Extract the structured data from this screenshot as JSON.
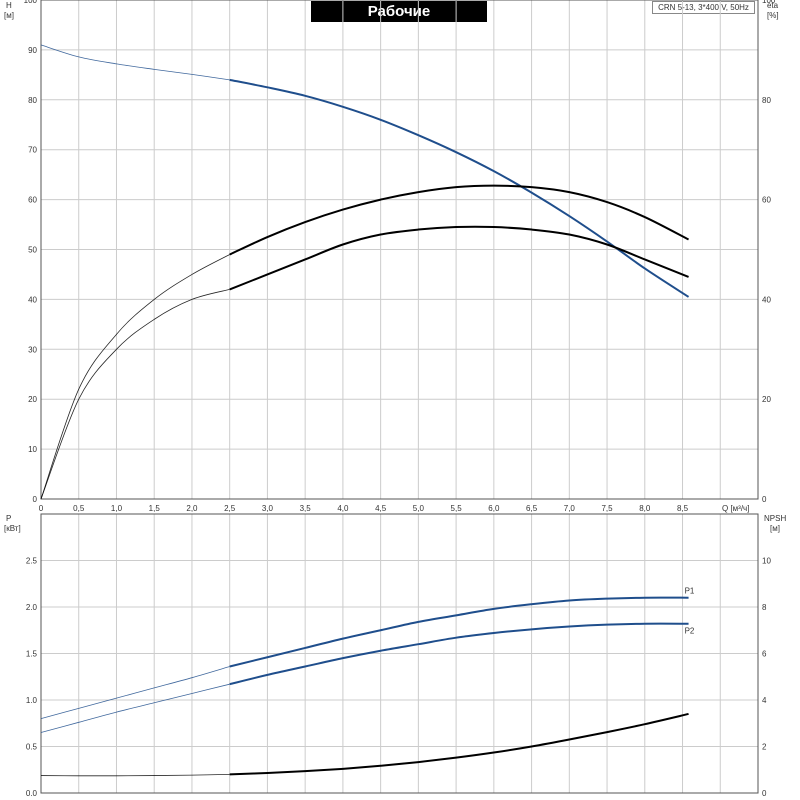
{
  "header": {
    "title": "Рабочие характеристики",
    "model": "CRN 5-13, 3*400 V, 50Hz"
  },
  "colors": {
    "head_curve": "#1f4e8c",
    "eta_curve": "#000000",
    "p1_curve": "#1f4e8c",
    "p2_curve": "#1f4e8c",
    "npsh_curve": "#000000",
    "grid": "#cccccc"
  },
  "chart_data": [
    {
      "type": "line",
      "panel": "upper",
      "xlabel": "Q",
      "xunit": "[м³/ч]",
      "ylabel_left": "H",
      "yunit_left": "[м]",
      "ylabel_right": "eta",
      "yunit_right": "[%]",
      "xlim": [
        0,
        9.5
      ],
      "ylim_left": [
        0,
        100
      ],
      "ylim_right": [
        0,
        100
      ],
      "xticks": [
        "0",
        "0,5",
        "1,0",
        "1,5",
        "2,0",
        "2,5",
        "3,0",
        "3,5",
        "4,0",
        "4,5",
        "5,0",
        "5,5",
        "6,0",
        "6,5",
        "7,0",
        "7,5",
        "8,0",
        "8,5"
      ],
      "yticks_left": [
        "0",
        "10",
        "20",
        "30",
        "40",
        "50",
        "60",
        "70",
        "80",
        "90",
        "100"
      ],
      "yticks_right": [
        "0",
        "20",
        "40",
        "60",
        "80",
        "100"
      ],
      "grid": true,
      "series": [
        {
          "key": "head",
          "axis": "left",
          "duty_start": 2.5,
          "x": [
            0,
            0.5,
            1,
            1.5,
            2,
            2.5,
            3,
            3.5,
            4,
            4.5,
            5,
            5.5,
            6,
            6.5,
            7,
            7.5,
            8,
            8.58
          ],
          "y": [
            91,
            88.6,
            87.2,
            86.1,
            85.1,
            84.0,
            82.5,
            80.8,
            78.6,
            76.0,
            72.9,
            69.5,
            65.7,
            61.4,
            56.7,
            51.6,
            46.2,
            40.5
          ]
        },
        {
          "key": "eta",
          "axis": "right",
          "duty_start": 2.5,
          "x": [
            0,
            0.5,
            1,
            1.5,
            2,
            2.5,
            3,
            3.5,
            4,
            4.5,
            5,
            5.5,
            6,
            6.5,
            7,
            7.5,
            8,
            8.58
          ],
          "y": [
            0,
            20,
            30,
            36,
            40,
            42,
            45,
            48,
            51,
            53,
            54,
            54.5,
            54.5,
            54,
            53,
            51,
            48,
            44.5
          ]
        },
        {
          "key": "eta_upper",
          "axis": "right",
          "duty_start": 2.5,
          "x": [
            0,
            0.5,
            1,
            1.5,
            2,
            2.5,
            3,
            3.5,
            4,
            4.5,
            5,
            5.5,
            6,
            6.5,
            7,
            7.5,
            8,
            8.58
          ],
          "y": [
            0,
            22,
            33,
            40,
            45,
            49,
            52.5,
            55.5,
            58,
            60,
            61.5,
            62.5,
            62.8,
            62.5,
            61.5,
            59.5,
            56.5,
            52
          ]
        }
      ]
    },
    {
      "type": "line",
      "panel": "lower",
      "ylabel_left": "P",
      "yunit_left": "[кВт]",
      "ylabel_right": "NPSH",
      "yunit_right": "[м]",
      "xlim": [
        0,
        9.5
      ],
      "ylim_left": [
        0,
        3.0
      ],
      "ylim_right": [
        0,
        12
      ],
      "yticks_left": [
        "0.0",
        "0.5",
        "1.0",
        "1.5",
        "2.0",
        "2.5"
      ],
      "yticks_right": [
        "0",
        "2",
        "4",
        "6",
        "8",
        "10"
      ],
      "grid": true,
      "series": [
        {
          "key": "p1",
          "name": "P1",
          "axis": "left",
          "duty_start": 2.5,
          "x": [
            0,
            0.5,
            1,
            1.5,
            2,
            2.5,
            3,
            3.5,
            4,
            4.5,
            5,
            5.5,
            6,
            6.5,
            7,
            7.5,
            8,
            8.58
          ],
          "y": [
            0.8,
            0.91,
            1.02,
            1.13,
            1.24,
            1.36,
            1.46,
            1.56,
            1.66,
            1.75,
            1.84,
            1.91,
            1.98,
            2.03,
            2.07,
            2.09,
            2.1,
            2.1
          ]
        },
        {
          "key": "p2",
          "name": "P2",
          "axis": "left",
          "duty_start": 2.5,
          "x": [
            0,
            0.5,
            1,
            1.5,
            2,
            2.5,
            3,
            3.5,
            4,
            4.5,
            5,
            5.5,
            6,
            6.5,
            7,
            7.5,
            8,
            8.58
          ],
          "y": [
            0.65,
            0.76,
            0.87,
            0.97,
            1.07,
            1.17,
            1.27,
            1.36,
            1.45,
            1.53,
            1.6,
            1.67,
            1.72,
            1.76,
            1.79,
            1.81,
            1.82,
            1.82
          ]
        },
        {
          "key": "npsh",
          "axis": "right",
          "duty_start": 2.5,
          "x": [
            0,
            0.5,
            1,
            1.5,
            2,
            2.5,
            3,
            3.5,
            4,
            4.5,
            5,
            5.5,
            6,
            6.5,
            7,
            7.5,
            8,
            8.58
          ],
          "y": [
            0.75,
            0.74,
            0.74,
            0.75,
            0.77,
            0.8,
            0.86,
            0.94,
            1.04,
            1.17,
            1.33,
            1.52,
            1.74,
            2.0,
            2.3,
            2.62,
            2.96,
            3.4
          ]
        }
      ]
    }
  ]
}
